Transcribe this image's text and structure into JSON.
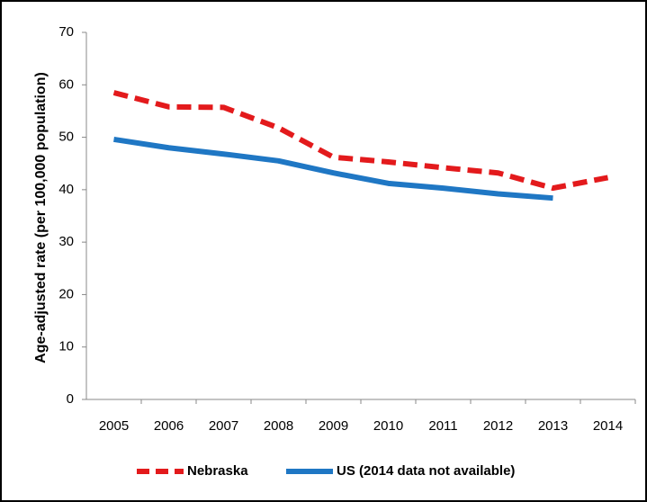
{
  "chart_data": {
    "type": "line",
    "y_label": "Age-adjusted rate (per 100,000 population)",
    "categories": [
      "2005",
      "2006",
      "2007",
      "2008",
      "2009",
      "2010",
      "2011",
      "2012",
      "2013",
      "2014"
    ],
    "series": [
      {
        "name": "Nebraska",
        "color": "#e31a1c",
        "dashed": true,
        "values": [
          58.5,
          55.8,
          55.7,
          51.8,
          46.2,
          45.3,
          44.2,
          43.2,
          40.3,
          42.3
        ]
      },
      {
        "name": "US (2014 data not available)",
        "color": "#1f77c4",
        "dashed": false,
        "values": [
          49.6,
          48.0,
          46.8,
          45.5,
          43.2,
          41.2,
          40.3,
          39.2,
          38.4,
          null
        ]
      }
    ],
    "ylim": [
      0,
      70
    ],
    "yticks": [
      0,
      10,
      20,
      30,
      40,
      50,
      60,
      70
    ],
    "grid": false
  }
}
